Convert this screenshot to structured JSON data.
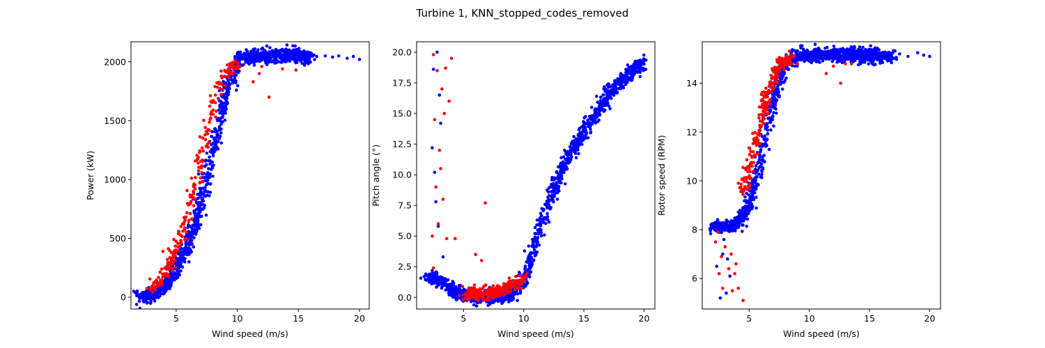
{
  "figure": {
    "title": "Turbine 1, KNN_stopped_codes_removed"
  },
  "legend": null,
  "chart_data": [
    {
      "type": "scatter",
      "title": "",
      "xlabel": "Wind speed (m/s)",
      "ylabel": "Power (kW)",
      "xlim": [
        1.3,
        20.8
      ],
      "ylim": [
        -100,
        2170
      ],
      "xticks": [
        5,
        10,
        15,
        20
      ],
      "yticks": [
        0,
        500,
        1000,
        1500,
        2000
      ],
      "grid": false,
      "series": [
        {
          "color": "#0000ff",
          "curve": [
            [
              2.0,
              5
            ],
            [
              3.0,
              20
            ],
            [
              4.0,
              90
            ],
            [
              5.0,
              230
            ],
            [
              6.0,
              450
            ],
            [
              7.0,
              780
            ],
            [
              8.0,
              1230
            ],
            [
              9.0,
              1700
            ],
            [
              10.0,
              2000
            ],
            [
              10.5,
              2040
            ],
            [
              12.0,
              2050
            ],
            [
              14.0,
              2055
            ],
            [
              16.0,
              2050
            ]
          ],
          "sparse_points": [
            [
              16.5,
              2045
            ],
            [
              17.2,
              2050
            ],
            [
              17.8,
              2040
            ],
            [
              18.3,
              2050
            ],
            [
              19.0,
              2030
            ],
            [
              19.5,
              2045
            ],
            [
              20.0,
              2020
            ],
            [
              15.2,
              2050
            ],
            [
              14.5,
              2060
            ]
          ]
        },
        {
          "color": "#ff0000",
          "curve": [
            [
              3.0,
              60
            ],
            [
              4.0,
              200
            ],
            [
              5.0,
              400
            ],
            [
              6.0,
              700
            ],
            [
              7.0,
              1150
            ],
            [
              8.0,
              1600
            ],
            [
              9.0,
              1900
            ],
            [
              10.0,
              2000
            ]
          ],
          "sparse_points": [
            [
              11.3,
              1830
            ],
            [
              12.0,
              1960
            ],
            [
              12.6,
              1700
            ],
            [
              13.7,
              1940
            ],
            [
              11.8,
              1900
            ],
            [
              14.8,
              1930
            ],
            [
              6.4,
              900
            ],
            [
              5.2,
              560
            ]
          ]
        }
      ]
    },
    {
      "type": "scatter",
      "title": "",
      "xlabel": "Wind speed (m/s)",
      "ylabel": "Pitch angle (°)",
      "xlim": [
        1.1,
        20.9
      ],
      "ylim": [
        -0.95,
        20.85
      ],
      "xticks": [
        5,
        10,
        15,
        20
      ],
      "yticks": [
        0.0,
        2.5,
        5.0,
        7.5,
        10.0,
        12.5,
        15.0,
        17.5,
        20.0
      ],
      "grid": false,
      "series": [
        {
          "color": "#0000ff",
          "curve": [
            [
              2.0,
              1.5
            ],
            [
              3.0,
              1.4
            ],
            [
              4.0,
              0.6
            ],
            [
              5.0,
              0.2
            ],
            [
              6.0,
              0.0
            ],
            [
              8.0,
              0.05
            ],
            [
              9.0,
              0.3
            ],
            [
              10.0,
              1.5
            ],
            [
              11.0,
              4.5
            ],
            [
              12.0,
              7.5
            ],
            [
              13.0,
              10.0
            ],
            [
              14.0,
              12.0
            ],
            [
              15.0,
              13.5
            ],
            [
              16.0,
              15.0
            ],
            [
              17.0,
              16.5
            ],
            [
              18.0,
              17.5
            ],
            [
              19.0,
              18.5
            ],
            [
              20.0,
              19.2
            ]
          ],
          "sparse_points": [
            [
              2.4,
              12.2
            ],
            [
              2.6,
              10.2
            ],
            [
              2.5,
              18.6
            ],
            [
              2.8,
              20.0
            ],
            [
              3.1,
              14.2
            ],
            [
              3.3,
              3.3
            ],
            [
              2.7,
              7.8
            ],
            [
              2.9,
              5.8
            ],
            [
              3.0,
              16.5
            ]
          ]
        },
        {
          "color": "#ff0000",
          "curve": [
            [
              5.0,
              0.3
            ],
            [
              6.0,
              0.25
            ],
            [
              7.0,
              0.3
            ],
            [
              8.0,
              0.5
            ],
            [
              9.0,
              1.0
            ],
            [
              10.0,
              1.5
            ]
          ],
          "sparse_points": [
            [
              2.5,
              19.8
            ],
            [
              2.8,
              18.5
            ],
            [
              3.2,
              17.0
            ],
            [
              3.5,
              18.7
            ],
            [
              4.0,
              19.5
            ],
            [
              2.6,
              14.5
            ],
            [
              3.0,
              12.0
            ],
            [
              2.7,
              9.0
            ],
            [
              3.3,
              8.0
            ],
            [
              2.9,
              6.0
            ],
            [
              3.6,
              4.8
            ],
            [
              4.3,
              4.8
            ],
            [
              2.5,
              2.4
            ],
            [
              6.0,
              3.5
            ],
            [
              6.8,
              7.7
            ],
            [
              6.5,
              3.0
            ],
            [
              3.1,
              10.5
            ],
            [
              3.4,
              15.0
            ],
            [
              2.4,
              5.0
            ],
            [
              3.8,
              16.0
            ]
          ]
        }
      ]
    },
    {
      "type": "scatter",
      "title": "",
      "xlabel": "Wind speed (m/s)",
      "ylabel": "Rotor speed (RPM)",
      "xlim": [
        1.1,
        20.9
      ],
      "ylim": [
        4.75,
        15.7
      ],
      "xticks": [
        5,
        10,
        15,
        20
      ],
      "yticks": [
        6,
        8,
        10,
        12,
        14
      ],
      "grid": false,
      "series": [
        {
          "color": "#0000ff",
          "curve": [
            [
              2.0,
              8.1
            ],
            [
              3.0,
              8.1
            ],
            [
              4.0,
              8.2
            ],
            [
              5.0,
              9.0
            ],
            [
              6.0,
              11.0
            ],
            [
              7.0,
              13.3
            ],
            [
              8.0,
              14.8
            ],
            [
              9.0,
              15.1
            ],
            [
              12.0,
              15.15
            ],
            [
              15.0,
              15.15
            ],
            [
              17.0,
              15.1
            ]
          ],
          "sparse_points": [
            [
              17.5,
              15.2
            ],
            [
              18.2,
              15.1
            ],
            [
              19.0,
              15.25
            ],
            [
              19.5,
              15.15
            ],
            [
              20.0,
              15.1
            ],
            [
              2.3,
              6.5
            ],
            [
              2.8,
              7.0
            ],
            [
              3.1,
              5.4
            ],
            [
              2.6,
              5.2
            ],
            [
              3.4,
              6.1
            ],
            [
              2.9,
              7.6
            ],
            [
              3.2,
              6.8
            ]
          ]
        },
        {
          "color": "#ff0000",
          "curve": [
            [
              4.5,
              9.5
            ],
            [
              5.5,
              11.5
            ],
            [
              6.5,
              13.5
            ],
            [
              7.5,
              14.8
            ],
            [
              8.5,
              15.0
            ]
          ],
          "sparse_points": [
            [
              2.2,
              7.5
            ],
            [
              2.5,
              6.2
            ],
            [
              2.8,
              5.6
            ],
            [
              3.0,
              7.3
            ],
            [
              3.3,
              6.4
            ],
            [
              3.6,
              5.5
            ],
            [
              3.9,
              6.6
            ],
            [
              4.1,
              5.6
            ],
            [
              4.5,
              5.1
            ],
            [
              2.4,
              7.9
            ],
            [
              3.5,
              7.0
            ],
            [
              12.0,
              14.7
            ],
            [
              12.6,
              14.0
            ],
            [
              13.0,
              14.8
            ],
            [
              13.5,
              14.8
            ],
            [
              11.4,
              14.4
            ],
            [
              2.7,
              6.9
            ],
            [
              3.8,
              6.2
            ]
          ]
        }
      ]
    }
  ]
}
